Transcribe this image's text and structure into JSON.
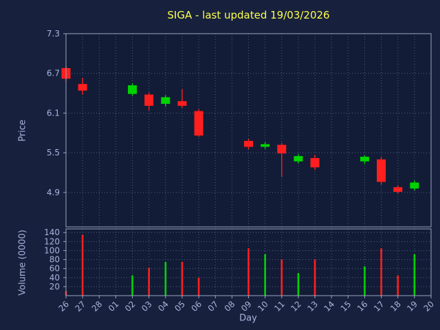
{
  "chart_data": {
    "type": "candlestick",
    "title": "SIGA - last updated 19/03/2026",
    "xlabel": "Day",
    "price_ylabel": "Price",
    "volume_ylabel": "Volume (0000)",
    "x_categories": [
      "26",
      "27",
      "28",
      "01",
      "02",
      "03",
      "04",
      "05",
      "06",
      "07",
      "08",
      "09",
      "10",
      "11",
      "12",
      "13",
      "14",
      "15",
      "16",
      "17",
      "18",
      "19",
      "20"
    ],
    "price_ticks": [
      4.9,
      5.5,
      6.1,
      6.7,
      7.3
    ],
    "price_range": [
      4.38,
      7.3
    ],
    "volume_ticks": [
      20,
      40,
      60,
      80,
      100,
      120,
      140
    ],
    "volume_range": [
      0,
      148
    ],
    "grid": true,
    "candles": [
      {
        "day": "26",
        "open": 6.78,
        "high": 6.81,
        "low": 6.58,
        "close": 6.62,
        "volume": 10
      },
      {
        "day": "27",
        "open": 6.54,
        "high": 6.63,
        "low": 6.38,
        "close": 6.44,
        "volume": 135
      },
      {
        "day": "02",
        "open": 6.39,
        "high": 6.55,
        "low": 6.36,
        "close": 6.52,
        "volume": 45
      },
      {
        "day": "03",
        "open": 6.38,
        "high": 6.41,
        "low": 6.14,
        "close": 6.21,
        "volume": 62
      },
      {
        "day": "04",
        "open": 6.24,
        "high": 6.37,
        "low": 6.2,
        "close": 6.34,
        "volume": 75
      },
      {
        "day": "05",
        "open": 6.28,
        "high": 6.46,
        "low": 6.18,
        "close": 6.21,
        "volume": 75
      },
      {
        "day": "06",
        "open": 6.13,
        "high": 6.16,
        "low": 5.74,
        "close": 5.76,
        "volume": 40
      },
      {
        "day": "09",
        "open": 5.68,
        "high": 5.71,
        "low": 5.55,
        "close": 5.59,
        "volume": 105
      },
      {
        "day": "10",
        "open": 5.59,
        "high": 5.66,
        "low": 5.56,
        "close": 5.63,
        "volume": 92
      },
      {
        "day": "11",
        "open": 5.62,
        "high": 5.65,
        "low": 5.14,
        "close": 5.49,
        "volume": 80
      },
      {
        "day": "12",
        "open": 5.37,
        "high": 5.48,
        "low": 5.34,
        "close": 5.45,
        "volume": 50
      },
      {
        "day": "13",
        "open": 5.42,
        "high": 5.47,
        "low": 5.24,
        "close": 5.28,
        "volume": 80
      },
      {
        "day": "16",
        "open": 5.37,
        "high": 5.46,
        "low": 5.33,
        "close": 5.44,
        "volume": 65
      },
      {
        "day": "17",
        "open": 5.4,
        "high": 5.44,
        "low": 5.02,
        "close": 5.06,
        "volume": 105
      },
      {
        "day": "18",
        "open": 4.98,
        "high": 5.01,
        "low": 4.88,
        "close": 4.91,
        "volume": 45
      },
      {
        "day": "19",
        "open": 4.96,
        "high": 5.08,
        "low": 4.93,
        "close": 5.05,
        "volume": 92
      }
    ],
    "colors": {
      "up": "#00d400",
      "down": "#ff1f1f",
      "grid": "#50608a",
      "axis_text": "#a8b4dd",
      "background": "#121c36",
      "figure": "#17213d",
      "spine": "#9aa5c0",
      "title": "#ffff4d"
    }
  }
}
